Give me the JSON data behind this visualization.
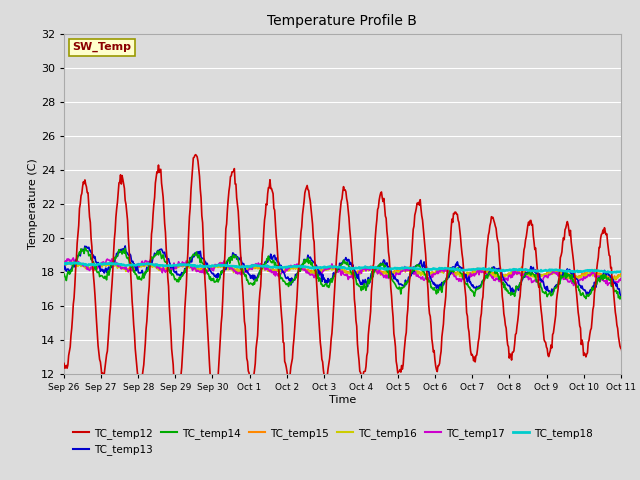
{
  "title": "Temperature Profile B",
  "xlabel": "Time",
  "ylabel": "Temperature (C)",
  "ylim": [
    12,
    32
  ],
  "yticks": [
    12,
    14,
    16,
    18,
    20,
    22,
    24,
    26,
    28,
    30,
    32
  ],
  "bg_color": "#dcdcdc",
  "plot_bg_color": "#dcdcdc",
  "grid_color": "#ffffff",
  "sw_temp_label": "SW_Temp",
  "sw_temp_value": 32,
  "legend_entries": [
    "TC_temp12",
    "TC_temp13",
    "TC_temp14",
    "TC_temp15",
    "TC_temp16",
    "TC_temp17",
    "TC_temp18"
  ],
  "line_colors": {
    "TC_temp12": "#cc0000",
    "TC_temp13": "#0000cc",
    "TC_temp14": "#00aa00",
    "TC_temp15": "#ff8800",
    "TC_temp16": "#cccc00",
    "TC_temp17": "#cc00cc",
    "TC_temp18": "#00cccc"
  },
  "line_widths": {
    "TC_temp12": 1.2,
    "TC_temp13": 1.2,
    "TC_temp14": 1.2,
    "TC_temp15": 1.2,
    "TC_temp16": 1.2,
    "TC_temp17": 1.2,
    "TC_temp18": 1.8
  },
  "date_labels": [
    "Sep 26",
    "Sep 27",
    "Sep 28",
    "Sep 29",
    "Sep 30",
    "Oct 1",
    "Oct 2",
    "Oct 3",
    "Oct 4",
    "Oct 5",
    "Oct 6",
    "Oct 7",
    "Oct 8",
    "Oct 9",
    "Oct 10",
    "Oct 11"
  ],
  "num_days": 16,
  "points_per_day": 48
}
